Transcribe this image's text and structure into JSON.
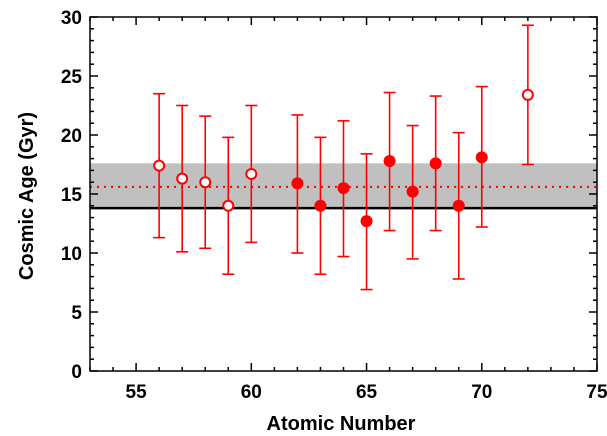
{
  "chart_data": {
    "type": "scatter",
    "title": "",
    "xlabel": "Atomic Number",
    "ylabel": "Cosmic Age (Gyr)",
    "xlim": [
      53,
      75
    ],
    "ylim": [
      0,
      30
    ],
    "x_ticks": [
      "55",
      "60",
      "65",
      "70",
      "75"
    ],
    "y_ticks": [
      "0",
      "5",
      "10",
      "15",
      "20",
      "25",
      "30"
    ],
    "grid": false,
    "reference_band": {
      "low": 13.8,
      "high": 17.6,
      "color": "#c0c0c0"
    },
    "reference_line_solid": {
      "y": 13.8,
      "color": "#000000"
    },
    "reference_line_dotted": {
      "y": 15.6,
      "color": "#ff0000"
    },
    "series": [
      {
        "marker": "open-circle",
        "color": "#ff0000",
        "points": [
          {
            "x": 56,
            "y": 17.4,
            "yerr_low": 11.3,
            "yerr_high": 23.5
          },
          {
            "x": 57,
            "y": 16.3,
            "yerr_low": 10.1,
            "yerr_high": 22.5
          },
          {
            "x": 58,
            "y": 16.0,
            "yerr_low": 10.4,
            "yerr_high": 21.6
          },
          {
            "x": 59,
            "y": 14.0,
            "yerr_low": 8.2,
            "yerr_high": 19.8
          },
          {
            "x": 60,
            "y": 16.7,
            "yerr_low": 10.9,
            "yerr_high": 22.5
          },
          {
            "x": 72,
            "y": 23.4,
            "yerr_low": 17.5,
            "yerr_high": 29.3
          }
        ]
      },
      {
        "marker": "filled-circle",
        "color": "#ff0000",
        "points": [
          {
            "x": 62,
            "y": 15.9,
            "yerr_low": 10.0,
            "yerr_high": 21.7
          },
          {
            "x": 63,
            "y": 14.0,
            "yerr_low": 8.2,
            "yerr_high": 19.8
          },
          {
            "x": 64,
            "y": 15.5,
            "yerr_low": 9.7,
            "yerr_high": 21.2
          },
          {
            "x": 65,
            "y": 12.7,
            "yerr_low": 6.9,
            "yerr_high": 18.4
          },
          {
            "x": 66,
            "y": 17.8,
            "yerr_low": 11.9,
            "yerr_high": 23.6
          },
          {
            "x": 67,
            "y": 15.2,
            "yerr_low": 9.5,
            "yerr_high": 20.8
          },
          {
            "x": 68,
            "y": 17.6,
            "yerr_low": 11.9,
            "yerr_high": 23.3
          },
          {
            "x": 69,
            "y": 14.0,
            "yerr_low": 7.8,
            "yerr_high": 20.2
          },
          {
            "x": 70,
            "y": 18.1,
            "yerr_low": 12.2,
            "yerr_high": 24.1
          }
        ]
      }
    ]
  }
}
